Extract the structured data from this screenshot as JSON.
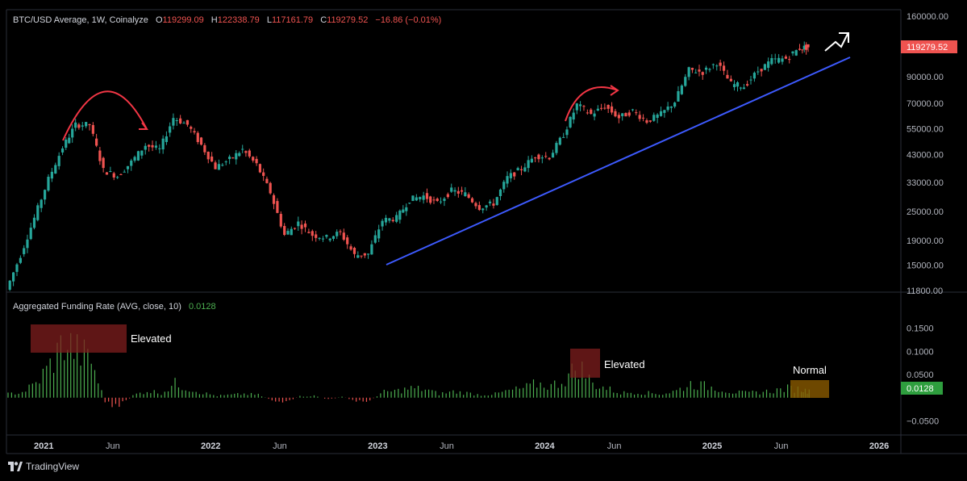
{
  "header": {
    "symbol": "BTC/USD Average, 1W, Coinalyze",
    "o_label": "O",
    "o_value": "119299.09",
    "h_label": "H",
    "h_value": "122338.79",
    "l_label": "L",
    "l_value": "117161.79",
    "c_label": "C",
    "c_value": "119279.52",
    "change": "−16.86 (−0.01%)"
  },
  "price_axis": {
    "ticks": [
      "160000.00",
      "90000.00",
      "70000.00",
      "55000.00",
      "43000.00",
      "33000.00",
      "25000.00",
      "19000.00",
      "15000.00",
      "11800.00"
    ],
    "last_price": "119279.52"
  },
  "indicator": {
    "title": "Aggregated Funding Rate (AVG, close, 10)",
    "value": "0.0128",
    "ticks": [
      "0.1500",
      "0.1000",
      "0.0500",
      "−0.0500"
    ],
    "last_value": "0.0128"
  },
  "annotations": {
    "elevated_1": "Elevated",
    "elevated_2": "Elevated",
    "normal": "Normal"
  },
  "time_axis": {
    "labels": [
      "2021",
      "Jun",
      "2022",
      "Jun",
      "2023",
      "Jun",
      "2024",
      "Jun",
      "2025",
      "Jun",
      "2026"
    ]
  },
  "brand": {
    "name": "TradingView"
  },
  "colors": {
    "background": "#000000",
    "up": "#26a69a",
    "down": "#ef5350",
    "trendline": "#3d5afe",
    "arrow": "#f23645",
    "funding_up": "#4caf50",
    "funding_down": "#ef5350",
    "elevated_box": "#7f1d1d",
    "normal_box": "#8a5a00"
  },
  "chart_data": [
    {
      "type": "candlestick",
      "title": "BTC/USD Average, 1W, Coinalyze",
      "scale": "log",
      "ylim": [
        11800,
        160000
      ],
      "xlim": [
        "2020-10-15",
        "2026-01-15"
      ],
      "x": [
        "2020-10-15",
        "2020-11-15",
        "2020-12-15",
        "2021-01-15",
        "2021-02-15",
        "2021-03-15",
        "2021-04-15",
        "2021-05-15",
        "2021-06-15",
        "2021-07-15",
        "2021-08-15",
        "2021-09-15",
        "2021-10-15",
        "2021-11-15",
        "2021-12-15",
        "2022-01-15",
        "2022-02-15",
        "2022-03-15",
        "2022-04-15",
        "2022-05-15",
        "2022-06-15",
        "2022-07-15",
        "2022-08-15",
        "2022-09-15",
        "2022-10-15",
        "2022-11-15",
        "2022-12-15",
        "2023-01-15",
        "2023-02-15",
        "2023-03-15",
        "2023-04-15",
        "2023-05-15",
        "2023-06-15",
        "2023-07-15",
        "2023-08-15",
        "2023-09-15",
        "2023-10-15",
        "2023-11-15",
        "2023-12-15",
        "2024-01-15",
        "2024-02-15",
        "2024-03-15",
        "2024-04-15",
        "2024-05-15",
        "2024-06-15",
        "2024-07-15",
        "2024-08-15",
        "2024-09-15",
        "2024-10-15",
        "2024-11-15",
        "2024-12-15",
        "2025-01-15",
        "2025-02-15",
        "2025-03-15",
        "2025-04-15",
        "2025-05-15",
        "2025-06-15",
        "2025-07-15",
        "2025-08-01"
      ],
      "close": [
        11900,
        16500,
        23500,
        34000,
        46000,
        57000,
        57000,
        37000,
        35000,
        40000,
        47000,
        45000,
        61000,
        57000,
        47000,
        38000,
        41000,
        45000,
        39000,
        30000,
        20000,
        22500,
        20000,
        19500,
        20500,
        16500,
        16700,
        23000,
        23500,
        28000,
        29000,
        27000,
        30500,
        29500,
        26000,
        27000,
        34500,
        37500,
        42500,
        42000,
        52000,
        69000,
        63000,
        68000,
        61000,
        65000,
        59000,
        63000,
        71000,
        96000,
        94000,
        103000,
        84000,
        82000,
        95000,
        105000,
        107000,
        118000,
        119279.52
      ]
    },
    {
      "type": "bar",
      "title": "Aggregated Funding Rate (AVG, close, 10)",
      "ylim": [
        -0.07,
        0.17
      ],
      "x": [
        "2020-10-15",
        "2020-11-15",
        "2020-12-15",
        "2021-01-15",
        "2021-02-15",
        "2021-03-15",
        "2021-04-15",
        "2021-05-15",
        "2021-06-15",
        "2021-07-15",
        "2021-08-15",
        "2021-09-15",
        "2021-10-15",
        "2021-11-15",
        "2021-12-15",
        "2022-01-15",
        "2022-02-15",
        "2022-03-15",
        "2022-04-15",
        "2022-05-15",
        "2022-06-15",
        "2022-07-15",
        "2022-08-15",
        "2022-09-15",
        "2022-10-15",
        "2022-11-15",
        "2022-12-15",
        "2023-01-15",
        "2023-02-15",
        "2023-03-15",
        "2023-04-15",
        "2023-05-15",
        "2023-06-15",
        "2023-07-15",
        "2023-08-15",
        "2023-09-15",
        "2023-10-15",
        "2023-11-15",
        "2023-12-15",
        "2024-01-15",
        "2024-02-15",
        "2024-03-15",
        "2024-04-15",
        "2024-05-15",
        "2024-06-15",
        "2024-07-15",
        "2024-08-15",
        "2024-09-15",
        "2024-10-15",
        "2024-11-15",
        "2024-12-15",
        "2025-01-15",
        "2025-02-15",
        "2025-03-15",
        "2025-04-15",
        "2025-05-15",
        "2025-06-15",
        "2025-07-15",
        "2025-08-01"
      ],
      "values": [
        0.008,
        0.012,
        0.03,
        0.07,
        0.12,
        0.1,
        0.08,
        -0.01,
        -0.02,
        0.005,
        0.015,
        0.01,
        0.03,
        0.02,
        0.01,
        0.004,
        0.006,
        0.008,
        0.006,
        -0.005,
        -0.012,
        0.003,
        0.004,
        -0.004,
        0.002,
        -0.008,
        -0.006,
        0.012,
        0.015,
        0.02,
        0.018,
        0.008,
        0.013,
        0.01,
        0.006,
        0.008,
        0.015,
        0.02,
        0.03,
        0.025,
        0.04,
        0.07,
        0.03,
        0.02,
        0.01,
        0.012,
        0.01,
        0.008,
        0.015,
        0.03,
        0.025,
        0.02,
        0.012,
        0.01,
        0.012,
        0.015,
        0.02,
        0.018,
        0.0128
      ]
    }
  ]
}
